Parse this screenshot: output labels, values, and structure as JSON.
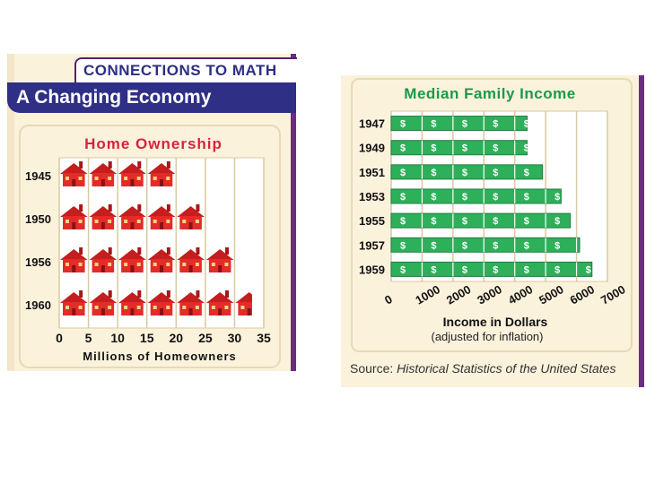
{
  "colors": {
    "accent_navy": "#2f2f86",
    "accent_purple": "#6b2c86",
    "panel_bg": "#fbf2dc",
    "grid_bg": "#ffffff",
    "house_red": "#e52a2a",
    "money_green": "#2eaf5a",
    "title_red": "#d6243f",
    "title_green": "#1a9a4a"
  },
  "left": {
    "connections_label": "CONNECTIONS   TO MATH",
    "title": "A Changing Economy"
  },
  "right": {
    "source_prefix": "Source:",
    "source_text": "Historical Statistics of the United States"
  },
  "chart_data": [
    {
      "type": "bar",
      "title": "Home Ownership",
      "pictograph_symbol": "house",
      "categories": [
        "1945",
        "1950",
        "1956",
        "1960"
      ],
      "values": [
        20,
        25,
        30,
        33
      ],
      "xlabel": "Millions of Homeowners",
      "xticks": [
        "0",
        "5",
        "10",
        "15",
        "20",
        "25",
        "30",
        "35"
      ],
      "xlim": [
        0,
        35
      ],
      "orientation": "horizontal",
      "grid": true
    },
    {
      "type": "bar",
      "title": "Median Family Income",
      "pictograph_symbol": "dollar-bill",
      "categories": [
        "1947",
        "1949",
        "1951",
        "1953",
        "1955",
        "1957",
        "1959"
      ],
      "values": [
        4400,
        4400,
        4900,
        5500,
        5800,
        6100,
        6500
      ],
      "xlabel": "Income in Dollars",
      "xlabel_note": "(adjusted  for  inflation)",
      "xticks": [
        "0",
        "1000",
        "2000",
        "3000",
        "4000",
        "5000",
        "6000",
        "7000"
      ],
      "xlim": [
        0,
        7000
      ],
      "orientation": "horizontal",
      "grid": true
    }
  ]
}
